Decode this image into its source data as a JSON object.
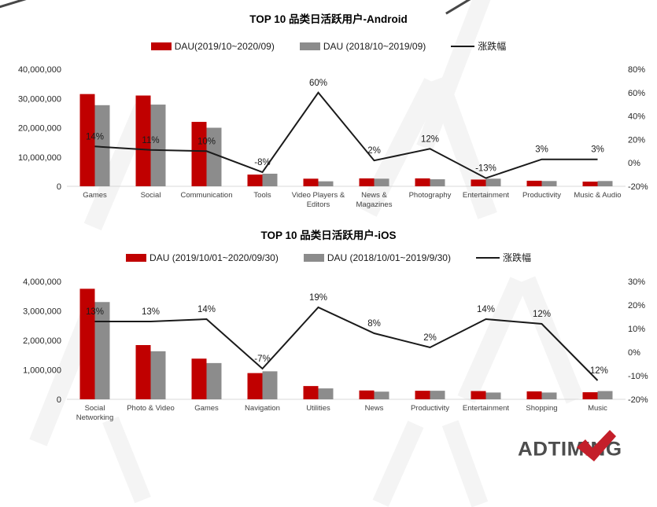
{
  "colors": {
    "bar_current": "#c00000",
    "bar_previous": "#8c8c8c",
    "trend_line": "#1a1a1a",
    "axis_line": "#d9d9d9",
    "text": "#262626",
    "logo_text": "#4d4d4d",
    "logo_check": "#c41f2a"
  },
  "logo": {
    "text": "ADTIMING"
  },
  "charts": [
    {
      "title": "TOP 10 品类日活跃用户-Android",
      "legend": [
        {
          "type": "bar",
          "color": "#c00000",
          "label": "DAU(2019/10~2020/09)"
        },
        {
          "type": "bar",
          "color": "#8c8c8c",
          "label": "DAU (2018/10~2019/09)"
        },
        {
          "type": "line",
          "color": "#1a1a1a",
          "label": "涨跌幅"
        }
      ],
      "chart_data": {
        "type": "bar",
        "categories": [
          [
            "Games"
          ],
          [
            "Social"
          ],
          [
            "Communication"
          ],
          [
            "Tools"
          ],
          [
            "Video Players &",
            "Editors"
          ],
          [
            "News &",
            "Magazines"
          ],
          [
            "Photography"
          ],
          [
            "Entertainment"
          ],
          [
            "Productivity"
          ],
          [
            "Music & Audio"
          ]
        ],
        "series": [
          {
            "name": "DAU(2019/10~2020/09)",
            "type": "bar",
            "axis": "left",
            "values": [
              31500000,
              31000000,
              22000000,
              4000000,
              2600000,
              2700000,
              2700000,
              2300000,
              1900000,
              1600000
            ]
          },
          {
            "name": "DAU (2018/10~2019/09)",
            "type": "bar",
            "axis": "left",
            "values": [
              27700000,
              27900000,
              20000000,
              4300000,
              1700000,
              2600000,
              2400000,
              2600000,
              1800000,
              1800000
            ]
          },
          {
            "name": "涨跌幅",
            "type": "line",
            "axis": "right",
            "values": [
              14,
              11,
              10,
              -8,
              60,
              2,
              12,
              -13,
              3,
              3
            ]
          }
        ],
        "point_labels": [
          "14%",
          "11%",
          "10%",
          "-8%",
          "60%",
          "2%",
          "12%",
          "-13%",
          "3%",
          "3%"
        ],
        "y_left": {
          "ticks": [
            "0",
            "10,000,000",
            "20,000,000",
            "30,000,000",
            "40,000,000"
          ],
          "min": 0,
          "max": 40000000
        },
        "y_right": {
          "ticks": [
            "-20%",
            "0%",
            "20%",
            "40%",
            "60%",
            "80%"
          ],
          "min": -20,
          "max": 80
        },
        "grid": false,
        "legend_position": "top"
      }
    },
    {
      "title": "TOP 10 品类日活跃用户-iOS",
      "legend": [
        {
          "type": "bar",
          "color": "#c00000",
          "label": "DAU (2019/10/01~2020/09/30)"
        },
        {
          "type": "bar",
          "color": "#8c8c8c",
          "label": "DAU (2018/10/01~2019/9/30)"
        },
        {
          "type": "line",
          "color": "#1a1a1a",
          "label": "涨跌幅"
        }
      ],
      "chart_data": {
        "type": "bar",
        "categories": [
          [
            "Social",
            "Networking"
          ],
          [
            "Photo & Video"
          ],
          [
            "Games"
          ],
          [
            "Navigation"
          ],
          [
            "Utilities"
          ],
          [
            "News"
          ],
          [
            "Productivity"
          ],
          [
            "Entertainment"
          ],
          [
            "Shopping"
          ],
          [
            "Music"
          ]
        ],
        "series": [
          {
            "name": "DAU (2019/10/01~2020/09/30)",
            "type": "bar",
            "axis": "left",
            "values": [
              3750000,
              1840000,
              1380000,
              890000,
              450000,
              300000,
              290000,
              280000,
              270000,
              240000
            ]
          },
          {
            "name": "DAU (2018/10/01~2019/9/30)",
            "type": "bar",
            "axis": "left",
            "values": [
              3300000,
              1630000,
              1230000,
              950000,
              370000,
              260000,
              290000,
              230000,
              230000,
              280000
            ]
          },
          {
            "name": "涨跌幅",
            "type": "line",
            "axis": "right",
            "values": [
              13,
              13,
              14,
              -7,
              19,
              8,
              2,
              14,
              12,
              -12
            ]
          }
        ],
        "point_labels": [
          "13%",
          "13%",
          "14%",
          "-7%",
          "19%",
          "8%",
          "2%",
          "14%",
          "12%",
          "-12%"
        ],
        "y_left": {
          "ticks": [
            "0",
            "1,000,000",
            "2,000,000",
            "3,000,000",
            "4,000,000"
          ],
          "min": 0,
          "max": 4000000
        },
        "y_right": {
          "ticks": [
            "-20%",
            "-10%",
            "0%",
            "10%",
            "20%",
            "30%"
          ],
          "min": -20,
          "max": 30
        },
        "grid": false,
        "legend_position": "top"
      }
    }
  ]
}
